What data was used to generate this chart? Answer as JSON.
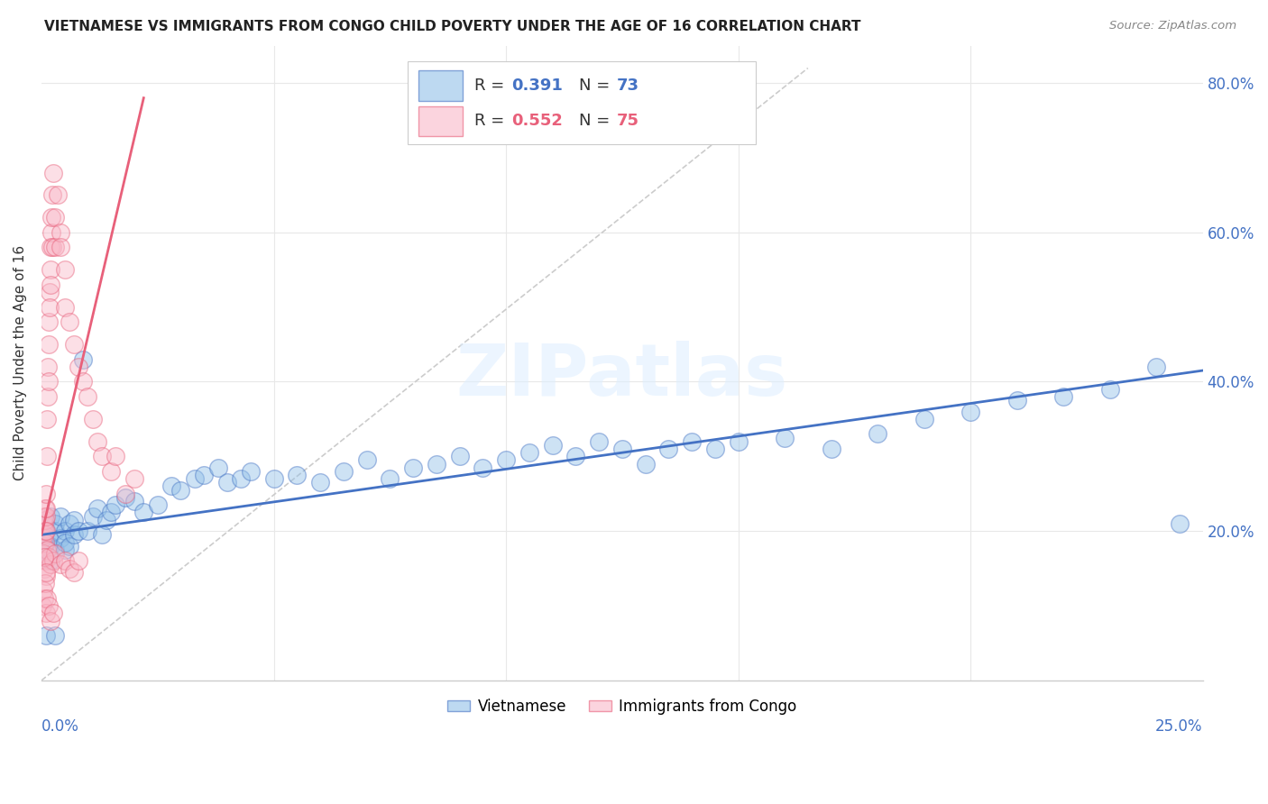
{
  "title": "VIETNAMESE VS IMMIGRANTS FROM CONGO CHILD POVERTY UNDER THE AGE OF 16 CORRELATION CHART",
  "source": "Source: ZipAtlas.com",
  "ylabel": "Child Poverty Under the Age of 16",
  "xlim": [
    0.0,
    0.25
  ],
  "ylim": [
    0.0,
    0.85
  ],
  "yticks": [
    0.0,
    0.2,
    0.4,
    0.6,
    0.8
  ],
  "ytick_labels": [
    "",
    "20.0%",
    "40.0%",
    "60.0%",
    "80.0%"
  ],
  "vietnamese_color": "#92c0e8",
  "congo_color": "#f9b8c8",
  "line_blue_color": "#4472c4",
  "line_pink_color": "#e8607a",
  "line_dashed_color": "#cccccc",
  "watermark_text": "ZIPatlas",
  "background_color": "#ffffff",
  "grid_color": "#e8e8e8",
  "viet_x": [
    0.0005,
    0.001,
    0.001,
    0.0015,
    0.002,
    0.002,
    0.002,
    0.003,
    0.003,
    0.003,
    0.004,
    0.004,
    0.005,
    0.005,
    0.005,
    0.006,
    0.006,
    0.007,
    0.007,
    0.008,
    0.009,
    0.01,
    0.011,
    0.012,
    0.013,
    0.014,
    0.015,
    0.016,
    0.018,
    0.02,
    0.022,
    0.025,
    0.028,
    0.03,
    0.033,
    0.035,
    0.038,
    0.04,
    0.043,
    0.045,
    0.05,
    0.055,
    0.06,
    0.065,
    0.07,
    0.075,
    0.08,
    0.085,
    0.09,
    0.095,
    0.1,
    0.105,
    0.11,
    0.115,
    0.12,
    0.125,
    0.13,
    0.135,
    0.14,
    0.145,
    0.15,
    0.16,
    0.17,
    0.18,
    0.19,
    0.2,
    0.21,
    0.22,
    0.23,
    0.24,
    0.001,
    0.003,
    0.245
  ],
  "viet_y": [
    0.175,
    0.2,
    0.185,
    0.19,
    0.22,
    0.18,
    0.16,
    0.2,
    0.175,
    0.21,
    0.19,
    0.22,
    0.175,
    0.2,
    0.185,
    0.18,
    0.21,
    0.195,
    0.215,
    0.2,
    0.43,
    0.2,
    0.22,
    0.23,
    0.195,
    0.215,
    0.225,
    0.235,
    0.245,
    0.24,
    0.225,
    0.235,
    0.26,
    0.255,
    0.27,
    0.275,
    0.285,
    0.265,
    0.27,
    0.28,
    0.27,
    0.275,
    0.265,
    0.28,
    0.295,
    0.27,
    0.285,
    0.29,
    0.3,
    0.285,
    0.295,
    0.305,
    0.315,
    0.3,
    0.32,
    0.31,
    0.29,
    0.31,
    0.32,
    0.31,
    0.32,
    0.325,
    0.31,
    0.33,
    0.35,
    0.36,
    0.375,
    0.38,
    0.39,
    0.42,
    0.06,
    0.06,
    0.21
  ],
  "congo_x": [
    0.0002,
    0.0003,
    0.0004,
    0.0005,
    0.0005,
    0.0006,
    0.0007,
    0.0007,
    0.0008,
    0.0008,
    0.0009,
    0.001,
    0.001,
    0.001,
    0.0012,
    0.0012,
    0.0013,
    0.0014,
    0.0015,
    0.0015,
    0.0016,
    0.0017,
    0.0018,
    0.0019,
    0.002,
    0.002,
    0.0021,
    0.0022,
    0.0023,
    0.0024,
    0.0025,
    0.003,
    0.003,
    0.0035,
    0.004,
    0.004,
    0.005,
    0.005,
    0.006,
    0.007,
    0.008,
    0.009,
    0.01,
    0.011,
    0.012,
    0.013,
    0.015,
    0.016,
    0.018,
    0.02,
    0.0003,
    0.0005,
    0.0007,
    0.001,
    0.0012,
    0.0015,
    0.002,
    0.0025,
    0.003,
    0.004,
    0.005,
    0.006,
    0.007,
    0.008,
    0.0002,
    0.0004,
    0.0006,
    0.0008,
    0.001,
    0.0012,
    0.0015,
    0.002,
    0.0025,
    0.0005,
    0.001
  ],
  "congo_y": [
    0.19,
    0.21,
    0.18,
    0.2,
    0.22,
    0.195,
    0.215,
    0.23,
    0.2,
    0.185,
    0.22,
    0.23,
    0.25,
    0.2,
    0.35,
    0.3,
    0.38,
    0.42,
    0.45,
    0.4,
    0.48,
    0.52,
    0.5,
    0.55,
    0.58,
    0.53,
    0.6,
    0.62,
    0.58,
    0.65,
    0.68,
    0.58,
    0.62,
    0.65,
    0.6,
    0.58,
    0.55,
    0.5,
    0.48,
    0.45,
    0.42,
    0.4,
    0.38,
    0.35,
    0.32,
    0.3,
    0.28,
    0.3,
    0.25,
    0.27,
    0.17,
    0.15,
    0.16,
    0.14,
    0.175,
    0.165,
    0.155,
    0.16,
    0.17,
    0.155,
    0.16,
    0.15,
    0.145,
    0.16,
    0.1,
    0.12,
    0.11,
    0.13,
    0.09,
    0.11,
    0.1,
    0.08,
    0.09,
    0.165,
    0.145
  ],
  "viet_line_x": [
    0.0,
    0.25
  ],
  "viet_line_y": [
    0.195,
    0.415
  ],
  "congo_line_x": [
    0.0,
    0.022
  ],
  "congo_line_y": [
    0.195,
    0.78
  ],
  "dash_line_x": [
    0.0,
    0.165
  ],
  "dash_line_y": [
    0.0,
    0.82
  ]
}
